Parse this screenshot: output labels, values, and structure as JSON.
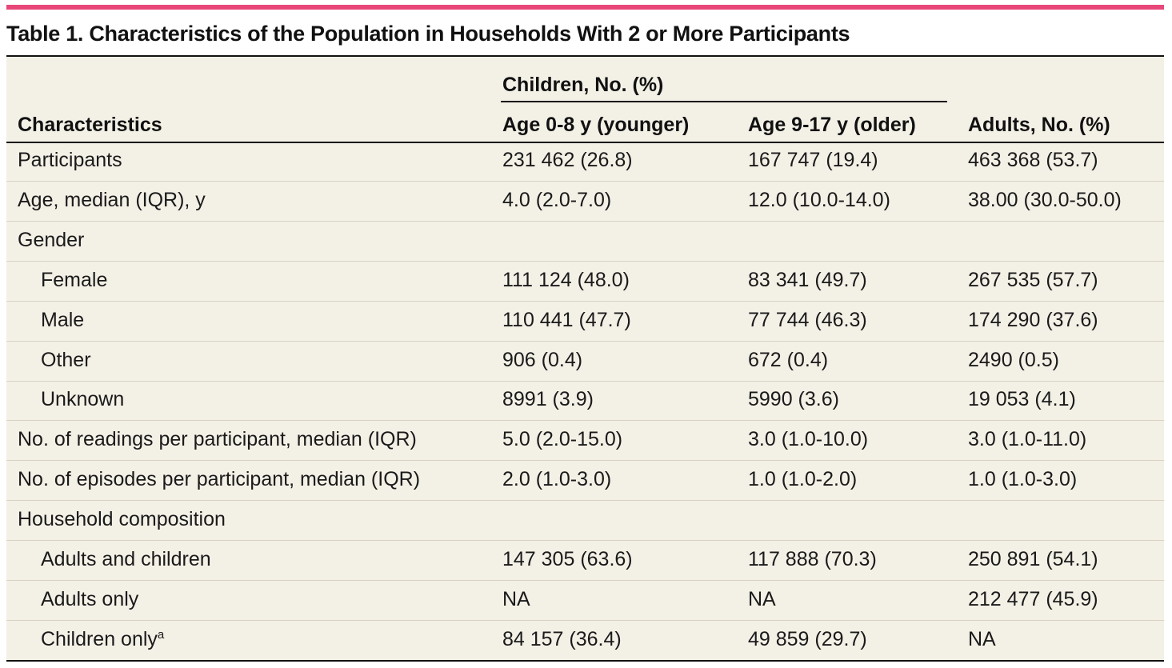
{
  "title": "Table 1. Characteristics of the Population in Households With 2 or More Participants",
  "header": {
    "characteristics": "Characteristics",
    "children_group": "Children, No. (%)",
    "younger": "Age 0-8 y (younger)",
    "older": "Age 9-17 y (older)",
    "adults": "Adults, No. (%)"
  },
  "colors": {
    "accent_bar": "#e8477a",
    "table_background": "#f3f0e6",
    "rule": "#111111",
    "row_divider": "#d8d2bf"
  },
  "rows": [
    {
      "label": "Participants",
      "indent": false,
      "younger": "231 462 (26.8)",
      "older": "167 747 (19.4)",
      "adults": "463 368 (53.7)"
    },
    {
      "label": "Age, median (IQR), y",
      "indent": false,
      "younger": "4.0 (2.0-7.0)",
      "older": "12.0 (10.0-14.0)",
      "adults": "38.00 (30.0-50.0)"
    },
    {
      "label": "Gender",
      "indent": false,
      "younger": "",
      "older": "",
      "adults": ""
    },
    {
      "label": "Female",
      "indent": true,
      "younger": "111 124 (48.0)",
      "older": "83 341 (49.7)",
      "adults": "267 535 (57.7)"
    },
    {
      "label": "Male",
      "indent": true,
      "younger": "110 441 (47.7)",
      "older": "77 744 (46.3)",
      "adults": "174 290 (37.6)"
    },
    {
      "label": "Other",
      "indent": true,
      "younger": "906 (0.4)",
      "older": "672 (0.4)",
      "adults": "2490 (0.5)"
    },
    {
      "label": "Unknown",
      "indent": true,
      "younger": "8991 (3.9)",
      "older": "5990 (3.6)",
      "adults": "19 053 (4.1)"
    },
    {
      "label": "No. of readings per participant, median (IQR)",
      "indent": false,
      "younger": "5.0 (2.0-15.0)",
      "older": "3.0 (1.0-10.0)",
      "adults": "3.0 (1.0-11.0)"
    },
    {
      "label": "No. of episodes per participant, median (IQR)",
      "indent": false,
      "younger": "2.0 (1.0-3.0)",
      "older": "1.0 (1.0-2.0)",
      "adults": "1.0 (1.0-3.0)"
    },
    {
      "label": "Household composition",
      "indent": false,
      "younger": "",
      "older": "",
      "adults": ""
    },
    {
      "label": "Adults and children",
      "indent": true,
      "younger": "147 305 (63.6)",
      "older": "117 888 (70.3)",
      "adults": "250 891 (54.1)"
    },
    {
      "label": "Adults only",
      "indent": true,
      "younger": "NA",
      "older": "NA",
      "adults": "212 477 (45.9)"
    },
    {
      "label": "Children only",
      "indent": true,
      "footnote": "a",
      "younger": "84 157 (36.4)",
      "older": "49 859 (29.7)",
      "adults": "NA"
    }
  ]
}
